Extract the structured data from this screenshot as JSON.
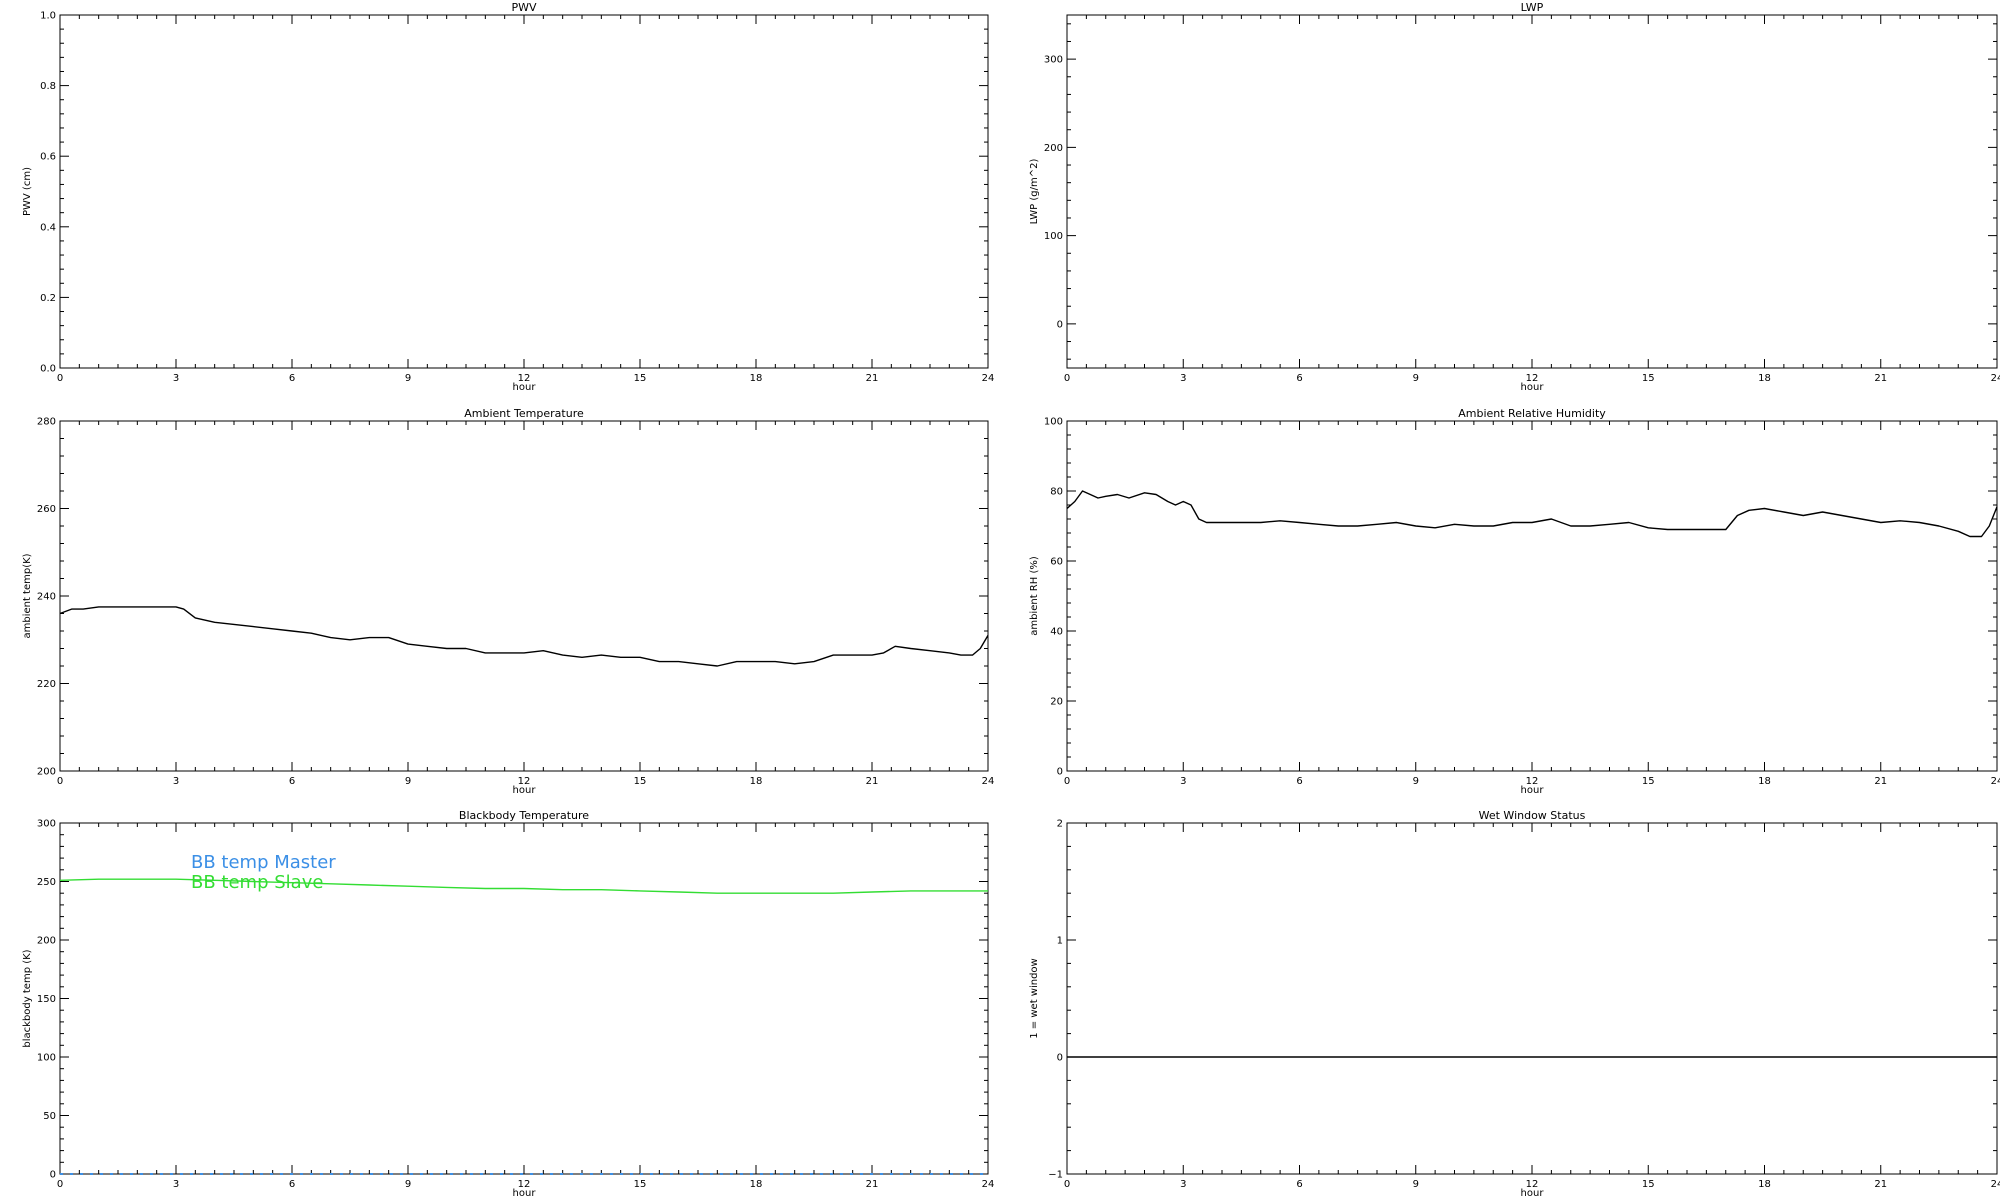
{
  "colors": {
    "axis": "#000000",
    "series_default": "#000000",
    "bb_master": "#3b8fe6",
    "bb_slave": "#33dd33"
  },
  "chart_data": [
    {
      "id": "pwv",
      "type": "line",
      "title": "PWV",
      "xlabel": "hour",
      "ylabel": "PWV (cm)",
      "xlim": [
        0,
        24
      ],
      "ylim": [
        0,
        1
      ],
      "xticks": [
        "0",
        "3",
        "6",
        "9",
        "12",
        "15",
        "18",
        "21",
        "24"
      ],
      "yticks": [
        "0.0",
        "0.2",
        "0.4",
        "0.6",
        "0.8",
        "1.0"
      ],
      "grid": false,
      "series": []
    },
    {
      "id": "lwp",
      "type": "line",
      "title": "LWP",
      "xlabel": "hour",
      "ylabel": "LWP (g/m^2)",
      "xlim": [
        0,
        24
      ],
      "ylim": [
        -50,
        350
      ],
      "xticks": [
        "0",
        "3",
        "6",
        "9",
        "12",
        "15",
        "18",
        "21",
        "24"
      ],
      "yticks": [
        "0",
        "100",
        "200",
        "300"
      ],
      "grid": false,
      "series": []
    },
    {
      "id": "ambient-temp",
      "type": "line",
      "title": "Ambient Temperature",
      "xlabel": "hour",
      "ylabel": "ambient temp(K)",
      "xlim": [
        0,
        24
      ],
      "ylim": [
        200,
        280
      ],
      "xticks": [
        "0",
        "3",
        "6",
        "9",
        "12",
        "15",
        "18",
        "21",
        "24"
      ],
      "yticks": [
        "200",
        "220",
        "240",
        "260",
        "280"
      ],
      "grid": false,
      "series": [
        {
          "color": "#000000",
          "x": [
            0,
            0.3,
            0.6,
            1,
            1.5,
            2,
            2.5,
            3,
            3.2,
            3.5,
            4,
            4.5,
            5,
            5.5,
            6,
            6.5,
            7,
            7.5,
            8,
            8.5,
            9,
            9.5,
            10,
            10.5,
            11,
            11.5,
            12,
            12.5,
            13,
            13.5,
            14,
            14.5,
            15,
            15.5,
            16,
            16.5,
            17,
            17.5,
            18,
            18.5,
            19,
            19.5,
            20,
            20.5,
            21,
            21.3,
            21.6,
            22,
            22.5,
            23,
            23.3,
            23.6,
            23.8,
            24
          ],
          "y": [
            236,
            237,
            237,
            237.5,
            237.5,
            237.5,
            237.5,
            237.5,
            237,
            235,
            234,
            233.5,
            233,
            232.5,
            232,
            231.5,
            230.5,
            230,
            230.5,
            230.5,
            229,
            228.5,
            228,
            228,
            227,
            227,
            227,
            227.5,
            226.5,
            226,
            226.5,
            226,
            226,
            225,
            225,
            224.5,
            224,
            225,
            225,
            225,
            224.5,
            225,
            226.5,
            226.5,
            226.5,
            227,
            228.5,
            228,
            227.5,
            227,
            226.5,
            226.5,
            228,
            231
          ]
        }
      ]
    },
    {
      "id": "ambient-rh",
      "type": "line",
      "title": "Ambient Relative Humidity",
      "xlabel": "hour",
      "ylabel": "ambient RH (%)",
      "xlim": [
        0,
        24
      ],
      "ylim": [
        0,
        100
      ],
      "xticks": [
        "0",
        "3",
        "6",
        "9",
        "12",
        "15",
        "18",
        "21",
        "24"
      ],
      "yticks": [
        "0",
        "20",
        "40",
        "60",
        "80",
        "100"
      ],
      "grid": false,
      "series": [
        {
          "color": "#000000",
          "x": [
            0,
            0.2,
            0.4,
            0.6,
            0.8,
            1,
            1.3,
            1.6,
            2,
            2.3,
            2.6,
            2.8,
            3,
            3.2,
            3.4,
            3.6,
            4,
            4.5,
            5,
            5.5,
            6,
            6.5,
            7,
            7.5,
            8,
            8.5,
            9,
            9.5,
            10,
            10.5,
            11,
            11.5,
            12,
            12.5,
            13,
            13.5,
            14,
            14.5,
            15,
            15.5,
            16,
            16.5,
            17,
            17.3,
            17.6,
            18,
            18.5,
            19,
            19.5,
            20,
            20.5,
            21,
            21.5,
            22,
            22.5,
            23,
            23.3,
            23.6,
            23.8,
            24
          ],
          "y": [
            75,
            77,
            80,
            79,
            78,
            78.5,
            79,
            78,
            79.5,
            79,
            77,
            76,
            77,
            76,
            72,
            71,
            71,
            71,
            71,
            71.5,
            71,
            70.5,
            70,
            70,
            70.5,
            71,
            70,
            69.5,
            70.5,
            70,
            70,
            71,
            71,
            72,
            70,
            70,
            70.5,
            71,
            69.5,
            69,
            69,
            69,
            69,
            73,
            74.5,
            75,
            74,
            73,
            74,
            73,
            72,
            71,
            71.5,
            71,
            70,
            68.5,
            67,
            67,
            70,
            75.5
          ]
        }
      ]
    },
    {
      "id": "blackbody-temp",
      "type": "line",
      "title": "Blackbody Temperature",
      "xlabel": "hour",
      "ylabel": "blackbody temp (K)",
      "xlim": [
        0,
        24
      ],
      "ylim": [
        0,
        300
      ],
      "xticks": [
        "0",
        "3",
        "6",
        "9",
        "12",
        "15",
        "18",
        "21",
        "24"
      ],
      "yticks": [
        "0",
        "50",
        "100",
        "150",
        "200",
        "250",
        "300"
      ],
      "grid": false,
      "legend_position": "top-left",
      "series": [
        {
          "name": "BB temp Master",
          "color": "#3b8fe6",
          "dashed": true,
          "x": [
            0,
            24
          ],
          "y": [
            0,
            0
          ]
        },
        {
          "name": "BB temp Slave",
          "color": "#33dd33",
          "x": [
            0,
            1,
            2,
            3,
            4,
            5,
            6,
            7,
            8,
            9,
            10,
            11,
            12,
            13,
            14,
            15,
            16,
            17,
            18,
            19,
            20,
            21,
            22,
            23,
            24
          ],
          "y": [
            251,
            252,
            252,
            252,
            251,
            250,
            249,
            248,
            247,
            246,
            245,
            244,
            244,
            243,
            243,
            242,
            241,
            240,
            240,
            240,
            240,
            241,
            242,
            242,
            242
          ]
        }
      ]
    },
    {
      "id": "wet-window",
      "type": "line",
      "title": "Wet Window Status",
      "xlabel": "hour",
      "ylabel": "1 = wet window",
      "xlim": [
        0,
        24
      ],
      "ylim": [
        -1,
        2
      ],
      "xticks": [
        "0",
        "3",
        "6",
        "9",
        "12",
        "15",
        "18",
        "21",
        "24"
      ],
      "yticks": [
        "−1",
        "0",
        "1",
        "2"
      ],
      "grid": false,
      "series": [
        {
          "color": "#000000",
          "x": [
            0,
            24
          ],
          "y": [
            0,
            0
          ]
        }
      ]
    }
  ]
}
